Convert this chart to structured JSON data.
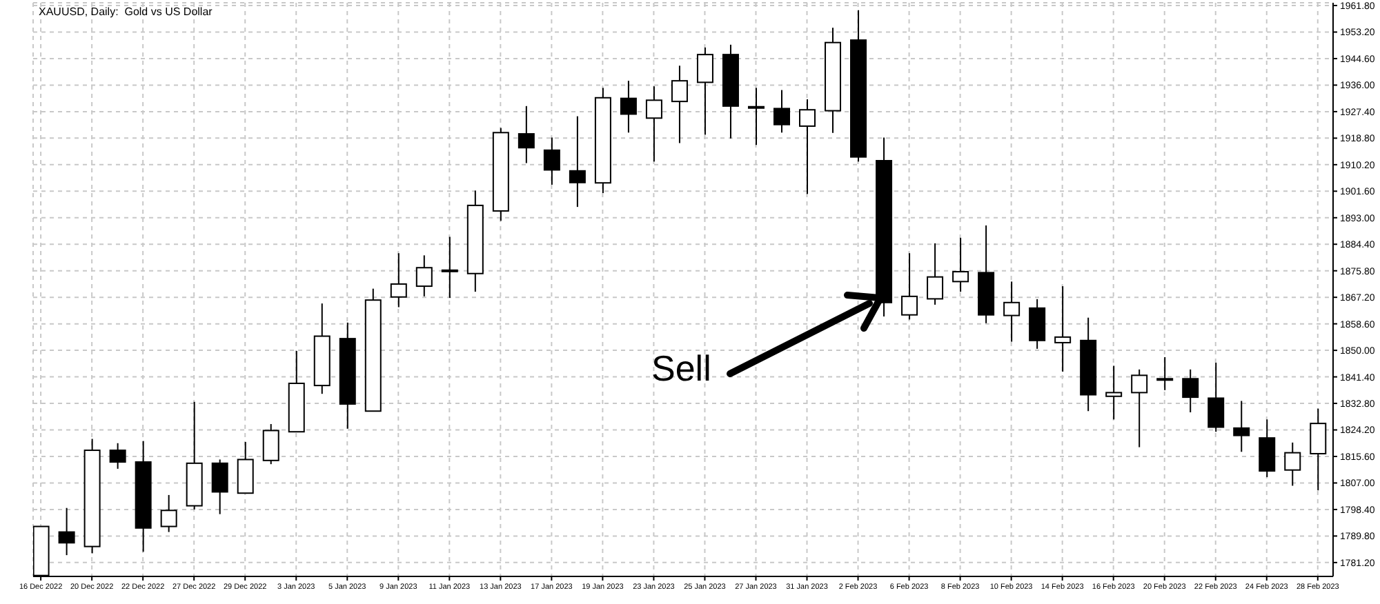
{
  "chart_data": {
    "type": "candlestick",
    "title": "XAUUSD, Daily:  Gold vs US Dollar",
    "annotations": [
      "Sell"
    ],
    "color": "#000000",
    "categories": [
      "16 Dec 2022",
      null,
      "20 Dec 2022",
      null,
      "22 Dec 2022",
      null,
      "27 Dec 2022",
      null,
      "29 Dec 2022",
      null,
      "3 Jan 2023",
      null,
      "5 Jan 2023",
      null,
      "9 Jan 2023",
      null,
      "11 Jan 2023",
      null,
      "13 Jan 2023",
      null,
      "17 Jan 2023",
      null,
      "19 Jan 2023",
      null,
      "23 Jan 2023",
      null,
      "25 Jan 2023",
      null,
      "27 Jan 2023",
      null,
      "31 Jan 2023",
      null,
      "2 Feb 2023",
      null,
      "6 Feb 2023",
      null,
      "8 Feb 2023",
      null,
      "10 Feb 2023",
      null,
      "14 Feb 2023",
      null,
      "16 Feb 2023",
      null,
      "20 Feb 2023",
      null,
      "22 Feb 2023",
      null,
      "24 Feb 2023",
      null,
      "28 Feb 2023"
    ],
    "ohlc": [
      [
        1777.0,
        1792.9,
        1777.0,
        1792.9
      ],
      [
        1791.1,
        1798.9,
        1783.6,
        1787.6
      ],
      [
        1786.4,
        1821.3,
        1784.2,
        1817.6
      ],
      [
        1817.6,
        1819.9,
        1811.6,
        1813.8
      ],
      [
        1813.8,
        1820.6,
        1784.7,
        1792.4
      ],
      [
        1792.9,
        1803.1,
        1791.1,
        1798.1
      ],
      [
        1799.6,
        1833.3,
        1798.4,
        1813.4
      ],
      [
        1813.4,
        1814.6,
        1796.9,
        1804.1
      ],
      [
        1803.7,
        1820.3,
        1803.7,
        1814.6
      ],
      [
        1814.3,
        1826.1,
        1813.1,
        1824.0
      ],
      [
        1823.6,
        1849.8,
        1823.6,
        1839.3
      ],
      [
        1838.6,
        1865.2,
        1835.9,
        1854.6
      ],
      [
        1853.8,
        1859.0,
        1824.6,
        1832.6
      ],
      [
        1830.3,
        1870.0,
        1830.3,
        1866.3
      ],
      [
        1867.3,
        1881.5,
        1864.0,
        1871.5
      ],
      [
        1870.8,
        1880.8,
        1867.5,
        1876.8
      ],
      [
        1875.9,
        1886.8,
        1867.0,
        1876.0
      ],
      [
        1874.9,
        1901.8,
        1869.0,
        1897.0
      ],
      [
        1895.2,
        1922.1,
        1892.0,
        1920.6
      ],
      [
        1920.2,
        1929.2,
        1910.7,
        1915.7
      ],
      [
        1914.9,
        1919.0,
        1903.7,
        1908.5
      ],
      [
        1908.2,
        1925.9,
        1896.5,
        1904.4
      ],
      [
        1904.3,
        1935.1,
        1901.0,
        1931.9
      ],
      [
        1931.7,
        1937.4,
        1920.6,
        1926.6
      ],
      [
        1925.3,
        1935.6,
        1911.2,
        1931.1
      ],
      [
        1930.7,
        1942.3,
        1917.2,
        1937.4
      ],
      [
        1936.9,
        1948.2,
        1919.9,
        1945.9
      ],
      [
        1945.9,
        1949.1,
        1918.7,
        1929.2
      ],
      [
        1929.0,
        1935.1,
        1916.6,
        1928.8
      ],
      [
        1928.4,
        1934.4,
        1920.6,
        1923.2
      ],
      [
        1922.7,
        1931.4,
        1900.7,
        1928.0
      ],
      [
        1927.7,
        1954.6,
        1920.5,
        1949.8
      ],
      [
        1950.6,
        1960.3,
        1911.2,
        1912.7
      ],
      [
        1911.5,
        1919.0,
        1861.0,
        1865.5
      ],
      [
        1861.5,
        1881.5,
        1860.0,
        1867.5
      ],
      [
        1866.7,
        1884.7,
        1864.8,
        1873.8
      ],
      [
        1872.3,
        1886.5,
        1869.0,
        1875.5
      ],
      [
        1875.2,
        1890.5,
        1858.8,
        1861.5
      ],
      [
        1861.3,
        1872.3,
        1852.8,
        1865.5
      ],
      [
        1863.7,
        1866.6,
        1850.5,
        1853.2
      ],
      [
        1852.5,
        1870.8,
        1843.1,
        1854.3
      ],
      [
        1853.2,
        1860.6,
        1830.3,
        1835.6
      ],
      [
        1835.1,
        1845.0,
        1827.6,
        1836.3
      ],
      [
        1836.3,
        1843.8,
        1818.6,
        1841.9
      ],
      [
        1840.6,
        1847.8,
        1837.1,
        1840.8
      ],
      [
        1840.8,
        1843.8,
        1829.9,
        1834.8
      ],
      [
        1834.5,
        1846.0,
        1823.6,
        1825.1
      ],
      [
        1824.8,
        1833.6,
        1817.1,
        1822.4
      ],
      [
        1821.6,
        1827.6,
        1808.9,
        1810.9
      ],
      [
        1811.2,
        1820.1,
        1806.1,
        1816.8
      ],
      [
        1816.5,
        1831.1,
        1804.6,
        1826.3
      ]
    ],
    "ylim": [
      1776.7,
      1962.7
    ],
    "yticks": [
      {
        "value": 1781.2,
        "label": "1781.20"
      },
      {
        "value": 1789.8,
        "label": "1789.80"
      },
      {
        "value": 1798.4,
        "label": "1798.40"
      },
      {
        "value": 1807.0,
        "label": "1807.00"
      },
      {
        "value": 1815.6,
        "label": "1815.60"
      },
      {
        "value": 1824.2,
        "label": "1824.20"
      },
      {
        "value": 1832.8,
        "label": "1832.80"
      },
      {
        "value": 1841.4,
        "label": "1841.40"
      },
      {
        "value": 1850.0,
        "label": "1850.00"
      },
      {
        "value": 1858.6,
        "label": "1858.60"
      },
      {
        "value": 1867.2,
        "label": "1867.20"
      },
      {
        "value": 1875.8,
        "label": "1875.80"
      },
      {
        "value": 1884.4,
        "label": "1884.40"
      },
      {
        "value": 1893.0,
        "label": "1893.00"
      },
      {
        "value": 1901.6,
        "label": "1901.60"
      },
      {
        "value": 1910.2,
        "label": "1910.20"
      },
      {
        "value": 1918.8,
        "label": "1918.80"
      },
      {
        "value": 1927.4,
        "label": "1927.40"
      },
      {
        "value": 1936.0,
        "label": "1936.00"
      },
      {
        "value": 1944.6,
        "label": "1944.60"
      },
      {
        "value": 1953.2,
        "label": "1953.20"
      },
      {
        "value": 1961.8,
        "label": "1961.80"
      }
    ],
    "grid": true
  }
}
